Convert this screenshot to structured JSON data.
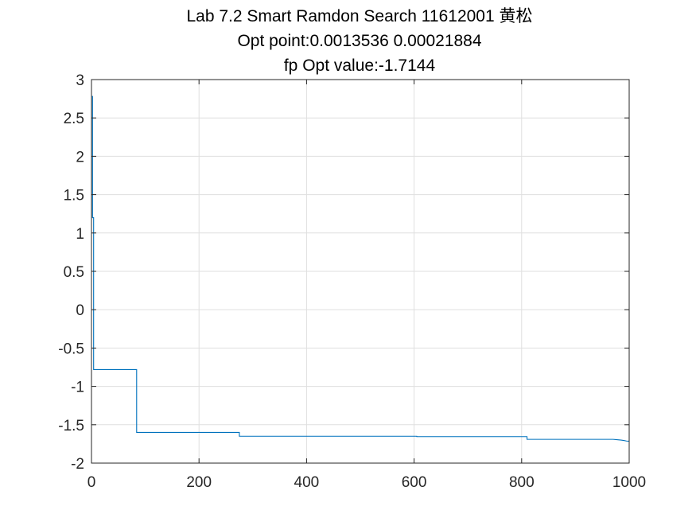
{
  "chart_data": {
    "type": "line",
    "title_lines": [
      "Lab 7.2 Smart Ramdon Search 11612001 黄松",
      "Opt point:0.0013536  0.00021884",
      "fp Opt value:-1.7144"
    ],
    "xlabel": "",
    "ylabel": "",
    "xlim": [
      0,
      1000
    ],
    "ylim": [
      -2,
      3
    ],
    "x_ticks": [
      0,
      200,
      400,
      600,
      800,
      1000
    ],
    "x_tick_labels": [
      "0",
      "200",
      "400",
      "600",
      "800",
      "1000"
    ],
    "y_ticks": [
      3,
      2.5,
      2,
      1.5,
      1,
      0.5,
      0,
      -0.5,
      -1,
      -1.5,
      -2
    ],
    "y_tick_labels": [
      "3",
      "2.5",
      "2",
      "1.5",
      "1",
      "0.5",
      "0",
      "-0.5",
      "-1",
      "-1.5",
      "-2"
    ],
    "grid": true,
    "box": true,
    "series": [
      {
        "color": "#0072BD",
        "x": [
          1,
          2,
          2,
          4,
          4,
          84,
          84,
          275,
          275,
          605,
          605,
          810,
          810,
          970,
          975,
          985,
          990,
          995,
          1000
        ],
        "y": [
          2.78,
          2.78,
          1.2,
          1.2,
          -0.78,
          -0.78,
          -1.6,
          -1.6,
          -1.65,
          -1.65,
          -1.655,
          -1.655,
          -1.69,
          -1.69,
          -1.693,
          -1.7,
          -1.705,
          -1.712,
          -1.7144
        ]
      }
    ]
  }
}
